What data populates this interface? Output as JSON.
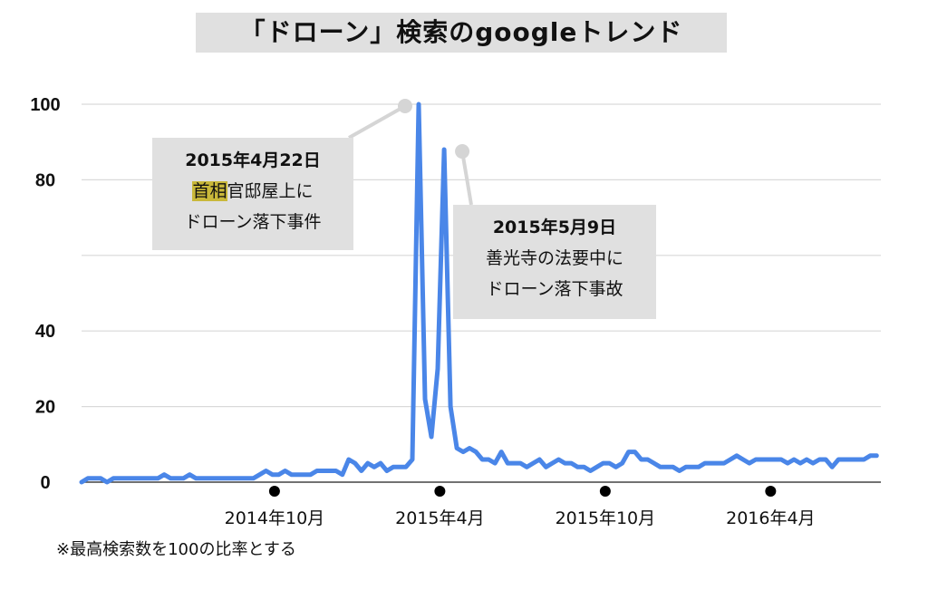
{
  "title": "「ドローン」検索のgoogleトレンド",
  "note": "※最高検索数を100の比率とする",
  "colors": {
    "line": "#4a86e8",
    "grid": "#d9d9d9",
    "box": "#e0e0e0",
    "highlight": "#c9b83a"
  },
  "annotations": [
    {
      "date": "2015年4月22日",
      "line1_highlight": "首相",
      "line1_rest": "官邸屋上に",
      "line2": "ドローン落下事件"
    },
    {
      "date": "2015年5月9日",
      "line1": "善光寺の法要中に",
      "line2": "ドローン落下事故"
    }
  ],
  "chart_data": {
    "type": "line",
    "title": "「ドローン」検索のgoogleトレンド",
    "ylim": [
      0,
      100
    ],
    "yticks": [
      0,
      20,
      40,
      60,
      80,
      100
    ],
    "ytick_labels": [
      "0",
      "20",
      "40",
      "",
      "80",
      "100"
    ],
    "xtick_labels": [
      "2014年10月",
      "2015年4月",
      "2015年10月",
      "2016年4月"
    ],
    "xlim": [
      "2014-03",
      "2016-08"
    ],
    "xtick_dates": [
      "2014-10",
      "2015-04",
      "2015-10",
      "2016-04"
    ],
    "x_start": "2014-03",
    "x_step_weeks": 1,
    "grid": true,
    "series": [
      {
        "values": [
          0,
          1,
          1,
          1,
          0,
          1,
          1,
          1,
          1,
          1,
          1,
          1,
          1,
          2,
          1,
          1,
          1,
          2,
          1,
          1,
          1,
          1,
          1,
          1,
          1,
          1,
          1,
          1,
          2,
          3,
          2,
          2,
          3,
          2,
          2,
          2,
          2,
          3,
          3,
          3,
          3,
          2,
          6,
          5,
          3,
          5,
          4,
          5,
          3,
          4,
          4,
          4,
          6,
          100,
          22,
          12,
          30,
          88,
          20,
          9,
          8,
          9,
          8,
          6,
          6,
          5,
          8,
          5,
          5,
          5,
          4,
          5,
          6,
          4,
          5,
          6,
          5,
          5,
          4,
          4,
          3,
          4,
          5,
          5,
          4,
          5,
          8,
          8,
          6,
          6,
          5,
          4,
          4,
          4,
          3,
          4,
          4,
          4,
          5,
          5,
          5,
          5,
          6,
          7,
          6,
          5,
          6,
          6,
          6,
          6,
          6,
          5,
          6,
          5,
          6,
          5,
          6,
          6,
          4,
          6,
          6,
          6,
          6,
          6,
          7,
          7
        ]
      }
    ]
  }
}
